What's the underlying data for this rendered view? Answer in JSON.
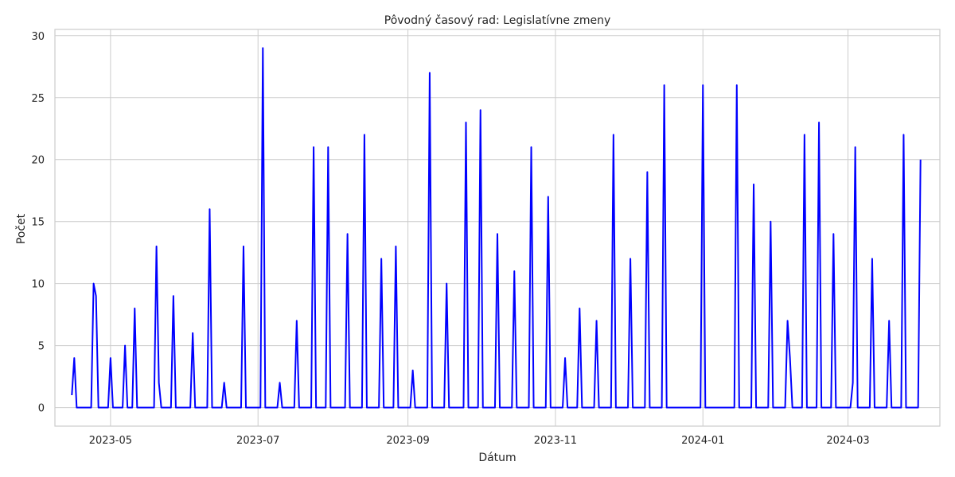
{
  "chart_data": {
    "type": "line",
    "title": "Pôvodný časový rad: Legislatívne zmeny",
    "xlabel": "Dátum",
    "ylabel": "Počet",
    "xlim": [
      "2023-04-08",
      "2024-04-08"
    ],
    "ylim": [
      -1.5,
      30.5
    ],
    "grid": true,
    "line_color": "#0000ff",
    "y_ticks": [
      0,
      5,
      10,
      15,
      20,
      25,
      30
    ],
    "x_ticks": [
      {
        "date": "2023-05-01",
        "label": "2023-05"
      },
      {
        "date": "2023-07-01",
        "label": "2023-07"
      },
      {
        "date": "2023-09-01",
        "label": "2023-09"
      },
      {
        "date": "2023-11-01",
        "label": "2023-11"
      },
      {
        "date": "2024-01-01",
        "label": "2024-01"
      },
      {
        "date": "2024-03-01",
        "label": "2024-03"
      }
    ],
    "series": [
      {
        "color": "#0000ff",
        "points": [
          [
            "2023-04-15",
            1
          ],
          [
            "2023-04-16",
            4
          ],
          [
            "2023-04-17",
            0
          ],
          [
            "2023-04-23",
            0
          ],
          [
            "2023-04-24",
            10
          ],
          [
            "2023-04-25",
            9
          ],
          [
            "2023-04-26",
            0
          ],
          [
            "2023-04-30",
            0
          ],
          [
            "2023-05-01",
            4
          ],
          [
            "2023-05-02",
            0
          ],
          [
            "2023-05-06",
            0
          ],
          [
            "2023-05-07",
            5
          ],
          [
            "2023-05-08",
            0
          ],
          [
            "2023-05-10",
            0
          ],
          [
            "2023-05-11",
            8
          ],
          [
            "2023-05-12",
            0
          ],
          [
            "2023-05-19",
            0
          ],
          [
            "2023-05-20",
            13
          ],
          [
            "2023-05-21",
            2
          ],
          [
            "2023-05-22",
            0
          ],
          [
            "2023-05-26",
            0
          ],
          [
            "2023-05-27",
            9
          ],
          [
            "2023-05-28",
            0
          ],
          [
            "2023-06-03",
            0
          ],
          [
            "2023-06-04",
            6
          ],
          [
            "2023-06-05",
            0
          ],
          [
            "2023-06-10",
            0
          ],
          [
            "2023-06-11",
            16
          ],
          [
            "2023-06-12",
            0
          ],
          [
            "2023-06-16",
            0
          ],
          [
            "2023-06-17",
            2
          ],
          [
            "2023-06-18",
            0
          ],
          [
            "2023-06-24",
            0
          ],
          [
            "2023-06-25",
            13
          ],
          [
            "2023-06-26",
            0
          ],
          [
            "2023-07-02",
            0
          ],
          [
            "2023-07-03",
            29
          ],
          [
            "2023-07-04",
            0
          ],
          [
            "2023-07-09",
            0
          ],
          [
            "2023-07-10",
            2
          ],
          [
            "2023-07-11",
            0
          ],
          [
            "2023-07-16",
            0
          ],
          [
            "2023-07-17",
            7
          ],
          [
            "2023-07-18",
            0
          ],
          [
            "2023-07-23",
            0
          ],
          [
            "2023-07-24",
            21
          ],
          [
            "2023-07-25",
            0
          ],
          [
            "2023-07-29",
            0
          ],
          [
            "2023-07-30",
            21
          ],
          [
            "2023-07-31",
            0
          ],
          [
            "2023-08-06",
            0
          ],
          [
            "2023-08-07",
            14
          ],
          [
            "2023-08-08",
            0
          ],
          [
            "2023-08-13",
            0
          ],
          [
            "2023-08-14",
            22
          ],
          [
            "2023-08-15",
            0
          ],
          [
            "2023-08-20",
            0
          ],
          [
            "2023-08-21",
            12
          ],
          [
            "2023-08-22",
            0
          ],
          [
            "2023-08-26",
            0
          ],
          [
            "2023-08-27",
            13
          ],
          [
            "2023-08-28",
            0
          ],
          [
            "2023-09-02",
            0
          ],
          [
            "2023-09-03",
            3
          ],
          [
            "2023-09-04",
            0
          ],
          [
            "2023-09-09",
            0
          ],
          [
            "2023-09-10",
            27
          ],
          [
            "2023-09-11",
            0
          ],
          [
            "2023-09-16",
            0
          ],
          [
            "2023-09-17",
            10
          ],
          [
            "2023-09-18",
            0
          ],
          [
            "2023-09-24",
            0
          ],
          [
            "2023-09-25",
            23
          ],
          [
            "2023-09-26",
            0
          ],
          [
            "2023-09-30",
            0
          ],
          [
            "2023-10-01",
            24
          ],
          [
            "2023-10-02",
            0
          ],
          [
            "2023-10-07",
            0
          ],
          [
            "2023-10-08",
            14
          ],
          [
            "2023-10-09",
            0
          ],
          [
            "2023-10-14",
            0
          ],
          [
            "2023-10-15",
            11
          ],
          [
            "2023-10-16",
            0
          ],
          [
            "2023-10-21",
            0
          ],
          [
            "2023-10-22",
            21
          ],
          [
            "2023-10-23",
            0
          ],
          [
            "2023-10-28",
            0
          ],
          [
            "2023-10-29",
            17
          ],
          [
            "2023-10-30",
            0
          ],
          [
            "2023-11-04",
            0
          ],
          [
            "2023-11-05",
            4
          ],
          [
            "2023-11-06",
            0
          ],
          [
            "2023-11-10",
            0
          ],
          [
            "2023-11-11",
            8
          ],
          [
            "2023-11-12",
            0
          ],
          [
            "2023-11-17",
            0
          ],
          [
            "2023-11-18",
            7
          ],
          [
            "2023-11-19",
            0
          ],
          [
            "2023-11-24",
            0
          ],
          [
            "2023-11-25",
            22
          ],
          [
            "2023-11-26",
            0
          ],
          [
            "2023-12-01",
            0
          ],
          [
            "2023-12-02",
            12
          ],
          [
            "2023-12-03",
            0
          ],
          [
            "2023-12-08",
            0
          ],
          [
            "2023-12-09",
            19
          ],
          [
            "2023-12-10",
            0
          ],
          [
            "2023-12-15",
            0
          ],
          [
            "2023-12-16",
            26
          ],
          [
            "2023-12-17",
            0
          ],
          [
            "2023-12-31",
            0
          ],
          [
            "2024-01-01",
            26
          ],
          [
            "2024-01-02",
            0
          ],
          [
            "2024-01-14",
            0
          ],
          [
            "2024-01-15",
            26
          ],
          [
            "2024-01-16",
            0
          ],
          [
            "2024-01-21",
            0
          ],
          [
            "2024-01-22",
            18
          ],
          [
            "2024-01-23",
            0
          ],
          [
            "2024-01-28",
            0
          ],
          [
            "2024-01-29",
            15
          ],
          [
            "2024-01-30",
            0
          ],
          [
            "2024-02-04",
            0
          ],
          [
            "2024-02-05",
            7
          ],
          [
            "2024-02-06",
            4
          ],
          [
            "2024-02-07",
            0
          ],
          [
            "2024-02-11",
            0
          ],
          [
            "2024-02-12",
            22
          ],
          [
            "2024-02-13",
            0
          ],
          [
            "2024-02-17",
            0
          ],
          [
            "2024-02-18",
            23
          ],
          [
            "2024-02-19",
            0
          ],
          [
            "2024-02-23",
            0
          ],
          [
            "2024-02-24",
            14
          ],
          [
            "2024-02-25",
            0
          ],
          [
            "2024-03-02",
            0
          ],
          [
            "2024-03-03",
            2
          ],
          [
            "2024-03-04",
            21
          ],
          [
            "2024-03-05",
            0
          ],
          [
            "2024-03-10",
            0
          ],
          [
            "2024-03-11",
            12
          ],
          [
            "2024-03-12",
            0
          ],
          [
            "2024-03-17",
            0
          ],
          [
            "2024-03-18",
            7
          ],
          [
            "2024-03-19",
            0
          ],
          [
            "2024-03-23",
            0
          ],
          [
            "2024-03-24",
            22
          ],
          [
            "2024-03-25",
            0
          ],
          [
            "2024-03-30",
            0
          ],
          [
            "2024-03-31",
            20
          ]
        ]
      }
    ]
  }
}
